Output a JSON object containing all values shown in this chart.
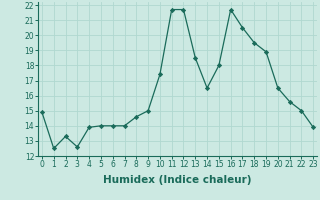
{
  "x": [
    0,
    1,
    2,
    3,
    4,
    5,
    6,
    7,
    8,
    9,
    10,
    11,
    12,
    13,
    14,
    15,
    16,
    17,
    18,
    19,
    20,
    21,
    22,
    23
  ],
  "y": [
    14.9,
    12.5,
    13.3,
    12.6,
    13.9,
    14.0,
    14.0,
    14.0,
    14.6,
    15.0,
    17.4,
    21.7,
    21.7,
    18.5,
    16.5,
    18.0,
    21.7,
    20.5,
    19.5,
    18.9,
    16.5,
    15.6,
    15.0,
    13.9
  ],
  "line_color": "#1a6b5a",
  "marker": "D",
  "marker_size": 2.2,
  "bg_color": "#cce9e2",
  "grid_color": "#b0d8d0",
  "xlabel": "Humidex (Indice chaleur)",
  "xlim": [
    -0.3,
    23.3
  ],
  "ylim": [
    12,
    22.2
  ],
  "yticks": [
    12,
    13,
    14,
    15,
    16,
    17,
    18,
    19,
    20,
    21,
    22
  ],
  "xticks": [
    0,
    1,
    2,
    3,
    4,
    5,
    6,
    7,
    8,
    9,
    10,
    11,
    12,
    13,
    14,
    15,
    16,
    17,
    18,
    19,
    20,
    21,
    22,
    23
  ],
  "tick_fontsize": 5.5,
  "label_fontsize": 7.5
}
